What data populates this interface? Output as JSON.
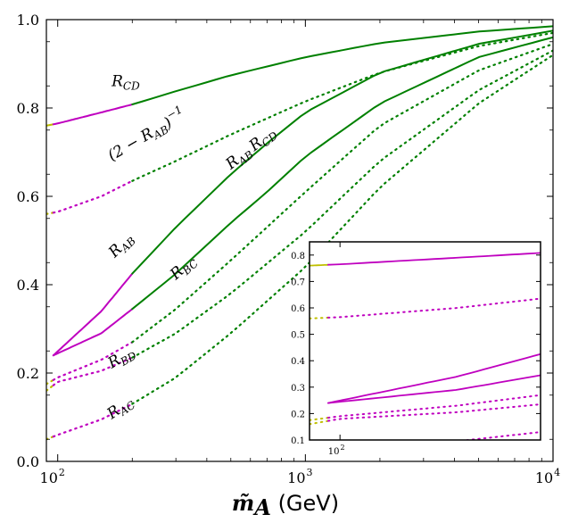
{
  "chart_data": {
    "type": "line",
    "xscale": "log",
    "xlim": [
      90,
      10000
    ],
    "ylim": [
      0.0,
      1.0
    ],
    "xlabel_symbol": "m̃",
    "xlabel_sub": "A",
    "xlabel_unit": " (GeV)",
    "x_ticks": [
      {
        "value": 100,
        "base": "10",
        "exp": "2"
      },
      {
        "value": 1000,
        "base": "10",
        "exp": "3"
      },
      {
        "value": 10000,
        "base": "10",
        "exp": "4"
      }
    ],
    "y_ticks": [
      {
        "value": 0.0,
        "label": "0.0"
      },
      {
        "value": 0.2,
        "label": "0.2"
      },
      {
        "value": 0.4,
        "label": "0.4"
      },
      {
        "value": 0.6,
        "label": "0.6"
      },
      {
        "value": 0.8,
        "label": "0.8"
      },
      {
        "value": 1.0,
        "label": "1.0"
      }
    ],
    "colors": {
      "yellow": "#bfbf00",
      "magenta": "#bf00bf",
      "green": "#008000"
    },
    "segment_breaks": [
      96,
      200
    ],
    "series": [
      {
        "name": "R_CD",
        "style": "solid",
        "points": [
          [
            90,
            0.76
          ],
          [
            100,
            0.765
          ],
          [
            150,
            0.79
          ],
          [
            200,
            0.808
          ],
          [
            300,
            0.838
          ],
          [
            500,
            0.874
          ],
          [
            1000,
            0.915
          ],
          [
            2000,
            0.947
          ],
          [
            5000,
            0.973
          ],
          [
            10000,
            0.985
          ]
        ]
      },
      {
        "name": "R_AB R_CD",
        "style": "solid",
        "points": [
          [
            96,
            0.24
          ],
          [
            150,
            0.34
          ],
          [
            200,
            0.425
          ],
          [
            300,
            0.53
          ],
          [
            500,
            0.65
          ],
          [
            700,
            0.72
          ],
          [
            1000,
            0.79
          ],
          [
            2000,
            0.88
          ],
          [
            5000,
            0.945
          ],
          [
            10000,
            0.975
          ]
        ]
      },
      {
        "name": "R_BC",
        "style": "solid",
        "points": [
          [
            96,
            0.24
          ],
          [
            150,
            0.29
          ],
          [
            200,
            0.345
          ],
          [
            300,
            0.425
          ],
          [
            500,
            0.54
          ],
          [
            700,
            0.61
          ],
          [
            1000,
            0.69
          ],
          [
            2000,
            0.81
          ],
          [
            5000,
            0.915
          ],
          [
            10000,
            0.96
          ]
        ]
      },
      {
        "name": "(2 - R_AB)^-1",
        "style": "dotted",
        "points": [
          [
            90,
            0.56
          ],
          [
            100,
            0.565
          ],
          [
            150,
            0.6
          ],
          [
            200,
            0.635
          ],
          [
            300,
            0.68
          ],
          [
            500,
            0.74
          ],
          [
            1000,
            0.815
          ],
          [
            2000,
            0.88
          ],
          [
            5000,
            0.94
          ],
          [
            10000,
            0.97
          ]
        ]
      },
      {
        "name": "R_AB (dotted)",
        "style": "dotted",
        "points": [
          [
            90,
            0.175
          ],
          [
            100,
            0.19
          ],
          [
            150,
            0.23
          ],
          [
            200,
            0.27
          ],
          [
            300,
            0.345
          ],
          [
            500,
            0.455
          ],
          [
            1000,
            0.61
          ],
          [
            2000,
            0.76
          ],
          [
            5000,
            0.885
          ],
          [
            10000,
            0.945
          ]
        ]
      },
      {
        "name": "R_BD",
        "style": "dotted",
        "points": [
          [
            90,
            0.16
          ],
          [
            100,
            0.18
          ],
          [
            150,
            0.205
          ],
          [
            200,
            0.235
          ],
          [
            300,
            0.29
          ],
          [
            500,
            0.38
          ],
          [
            1000,
            0.52
          ],
          [
            2000,
            0.68
          ],
          [
            5000,
            0.84
          ],
          [
            10000,
            0.93
          ]
        ]
      },
      {
        "name": "R_AC",
        "style": "dotted",
        "points": [
          [
            90,
            0.05
          ],
          [
            100,
            0.06
          ],
          [
            150,
            0.095
          ],
          [
            200,
            0.13
          ],
          [
            300,
            0.19
          ],
          [
            500,
            0.29
          ],
          [
            1000,
            0.44
          ],
          [
            2000,
            0.62
          ],
          [
            5000,
            0.81
          ],
          [
            10000,
            0.92
          ]
        ]
      }
    ],
    "annotations": [
      {
        "id": "rcd",
        "text": "R",
        "sub": "CD",
        "x": 165,
        "y": 0.85,
        "rotate": 0
      },
      {
        "id": "inv",
        "text": "(2 − R",
        "sub": "AB",
        "tail": ")",
        "sup": "−1",
        "x": 165,
        "y": 0.68,
        "rotate": -30
      },
      {
        "id": "rabrcd",
        "text": "R",
        "sub": "AB",
        "text2": "R",
        "sub2": "CD",
        "x": 500,
        "y": 0.66,
        "rotate": -38
      },
      {
        "id": "rab",
        "text": "R",
        "sub": "AB",
        "x": 170,
        "y": 0.46,
        "rotate": -45
      },
      {
        "id": "rbc",
        "text": "R",
        "sub": "BC",
        "x": 300,
        "y": 0.41,
        "rotate": -42
      },
      {
        "id": "rbd",
        "text": "R",
        "sub": "BD",
        "x": 165,
        "y": 0.21,
        "rotate": -30
      },
      {
        "id": "rac",
        "text": "R",
        "sub": "AC",
        "x": 165,
        "y": 0.095,
        "rotate": -35
      }
    ],
    "inset": {
      "xlim": [
        90,
        200
      ],
      "ylim": [
        0.1,
        0.85
      ],
      "x_ticks": [
        {
          "value": 100,
          "base": "10",
          "exp": "2"
        }
      ],
      "y_ticks": [
        {
          "value": 0.1,
          "label": "0.1"
        },
        {
          "value": 0.2,
          "label": "0.2"
        },
        {
          "value": 0.3,
          "label": "0.3"
        },
        {
          "value": 0.4,
          "label": "0.4"
        },
        {
          "value": 0.5,
          "label": "0.5"
        },
        {
          "value": 0.6,
          "label": "0.6"
        },
        {
          "value": 0.7,
          "label": "0.7"
        },
        {
          "value": 0.8,
          "label": "0.8"
        }
      ]
    }
  }
}
